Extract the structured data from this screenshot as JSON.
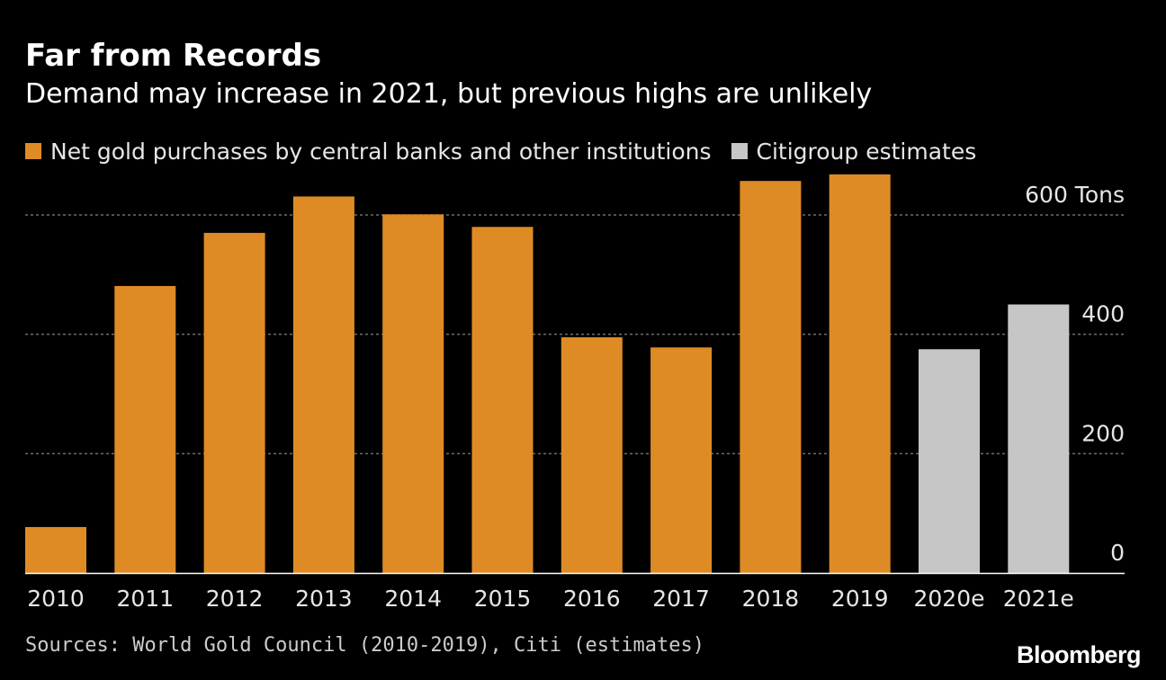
{
  "colors": {
    "background": "#000000",
    "actual": "#de8b26",
    "estimate": "#c6c6c6",
    "grid": "#6e6e6e",
    "axis": "#ffffff",
    "text": "#ffffff",
    "muted_text": "#e6e6e6"
  },
  "chart_data": {
    "type": "bar",
    "title": "Far from Records",
    "subtitle": "Demand may increase in 2021, but previous highs are unlikely",
    "categories": [
      "2010",
      "2011",
      "2012",
      "2013",
      "2014",
      "2015",
      "2016",
      "2017",
      "2018",
      "2019",
      "2020e",
      "2021e"
    ],
    "values": [
      77,
      481,
      570,
      631,
      601,
      580,
      395,
      378,
      657,
      668,
      375,
      450
    ],
    "series_index": [
      0,
      0,
      0,
      0,
      0,
      0,
      0,
      0,
      0,
      0,
      1,
      1
    ],
    "series": [
      {
        "name": "Net gold purchases by central banks and other institutions",
        "color": "#de8b26"
      },
      {
        "name": "Citigroup estimates",
        "color": "#c6c6c6"
      }
    ],
    "xlabel": "",
    "ylabel": "Tons",
    "ylim": [
      0,
      670
    ],
    "yticks": [
      0,
      200,
      400,
      600
    ],
    "ytick_labels": [
      "0",
      "200",
      "400",
      "600 Tons"
    ],
    "grid": true,
    "legend_position": "top-left"
  },
  "footer": {
    "source": "Sources: World Gold Council (2010-2019), Citi (estimates)",
    "brand": "Bloomberg"
  }
}
